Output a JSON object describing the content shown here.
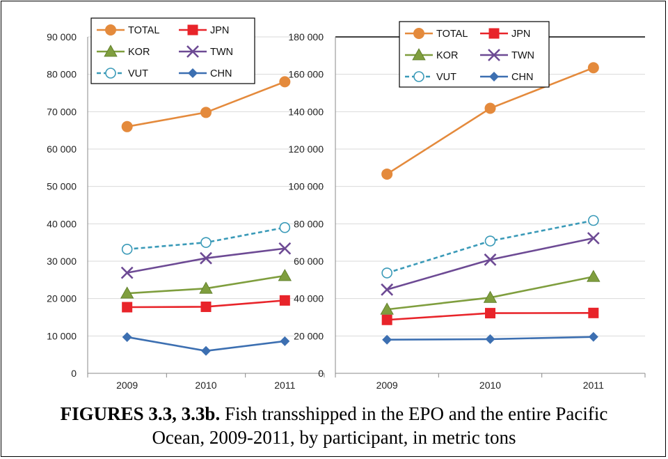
{
  "caption": {
    "bold": "FIGURES 3.3, 3.3b.",
    "line1_rest": " Fish transshipped in the EPO and the entire Pacific",
    "line2": "Ocean,  2009-2011, by participant, in metric tons"
  },
  "chart_data": [
    {
      "type": "line",
      "title": "",
      "xlabel": "",
      "ylabel": "",
      "categories": [
        "2009",
        "2010",
        "2011"
      ],
      "ylim": [
        0,
        90000
      ],
      "yticks": [
        "0",
        "10 000",
        "20 000",
        "30 000",
        "40 000",
        "50 000",
        "60 000",
        "70 000",
        "80 000",
        "90 000"
      ],
      "grid": true,
      "legend": "top-left",
      "series": [
        {
          "name": "TOTAL",
          "values": [
            66000,
            69800,
            78000
          ],
          "color": "#e48a3c",
          "marker": "circle"
        },
        {
          "name": "JPN",
          "values": [
            17700,
            17800,
            19500
          ],
          "color": "#e8242a",
          "marker": "square"
        },
        {
          "name": "KOR",
          "values": [
            21400,
            22700,
            26100
          ],
          "color": "#7f9e3e",
          "marker": "triangle"
        },
        {
          "name": "TWN",
          "values": [
            26900,
            30800,
            33400
          ],
          "color": "#6d4a94",
          "marker": "x"
        },
        {
          "name": "VUT",
          "values": [
            33200,
            35000,
            39000
          ],
          "color": "#3a9ab8",
          "marker": "open-circle",
          "dashed": true
        },
        {
          "name": "CHN",
          "values": [
            9700,
            6000,
            8600
          ],
          "color": "#3c6fb1",
          "marker": "diamond"
        }
      ]
    },
    {
      "type": "line",
      "title": "",
      "xlabel": "",
      "ylabel": "",
      "categories": [
        "2009",
        "2010",
        "2011"
      ],
      "ylim": [
        0,
        180000
      ],
      "yticks": [
        "0",
        "20 000",
        "40 000",
        "60 000",
        "80 000",
        "100 000",
        "120 000",
        "140 000",
        "160 000",
        "180 000"
      ],
      "grid": true,
      "legend": "top-left",
      "series": [
        {
          "name": "TOTAL",
          "values": [
            106600,
            141800,
            163500
          ],
          "color": "#e48a3c",
          "marker": "circle"
        },
        {
          "name": "JPN",
          "values": [
            28600,
            32200,
            32300
          ],
          "color": "#e8242a",
          "marker": "square"
        },
        {
          "name": "KOR",
          "values": [
            34200,
            40500,
            51700
          ],
          "color": "#7f9e3e",
          "marker": "triangle"
        },
        {
          "name": "TWN",
          "values": [
            44800,
            60800,
            72300
          ],
          "color": "#6d4a94",
          "marker": "x"
        },
        {
          "name": "VUT",
          "values": [
            53700,
            70800,
            81800
          ],
          "color": "#3a9ab8",
          "marker": "open-circle",
          "dashed": true
        },
        {
          "name": "CHN",
          "values": [
            18000,
            18300,
            19500
          ],
          "color": "#3c6fb1",
          "marker": "diamond"
        }
      ]
    }
  ]
}
